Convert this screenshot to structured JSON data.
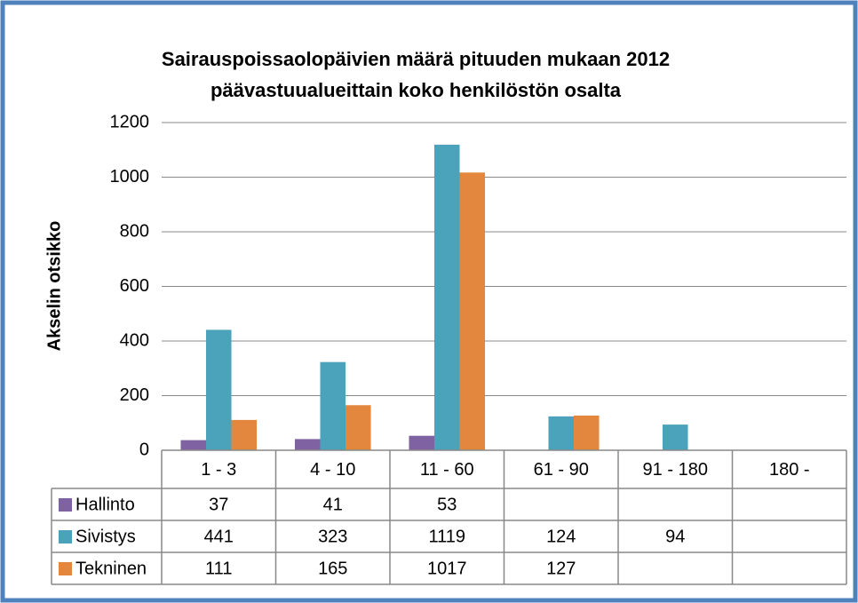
{
  "chart_data": {
    "type": "bar",
    "title": [
      "Sairauspoissaolopäivien määrä pituuden mukaan 2012",
      "päävastuualueittain koko henkilöstön osalta"
    ],
    "y_label": "Akselin otsikko",
    "categories": [
      "1 - 3",
      "4 - 10",
      "11 - 60",
      "61 - 90",
      "91 - 180",
      "180 -"
    ],
    "series": [
      {
        "name": "Hallinto",
        "color": "#7f62a1",
        "values": [
          37,
          41,
          53,
          null,
          null,
          null
        ]
      },
      {
        "name": "Sivistys",
        "color": "#4aa2bb",
        "values": [
          441,
          323,
          1119,
          124,
          94,
          null
        ]
      },
      {
        "name": "Tekninen",
        "color": "#e3873f",
        "values": [
          111,
          165,
          1017,
          127,
          null,
          null
        ]
      }
    ],
    "ylim": [
      0,
      1200
    ],
    "yticks": [
      0,
      200,
      400,
      600,
      800,
      1000,
      1200
    ],
    "grid": true,
    "data_table": true
  }
}
